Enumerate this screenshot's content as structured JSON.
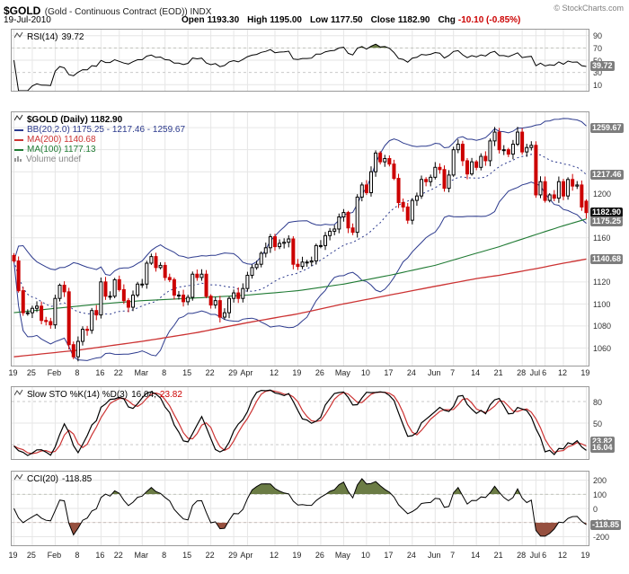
{
  "header": {
    "symbol": "$GOLD",
    "description": "(Gold - Continuous Contract (EOD)) INDX",
    "copyright": "© StockCharts.com",
    "date": "19-Jul-2010",
    "quote": {
      "open_label": "Open",
      "open_value": "1193.30",
      "high_label": "High",
      "high_value": "1195.00",
      "low_label": "Low",
      "low_value": "1177.50",
      "close_label": "Close",
      "close_value": "1182.90",
      "chg_label": "Chg",
      "chg_value": "-10.10 (-0.85%)"
    }
  },
  "panels": {
    "rsi": {
      "label": "RSI(14)",
      "value": "39.72",
      "ticks": [
        {
          "t": "90",
          "v": 90
        },
        {
          "t": "70",
          "v": 70
        },
        {
          "t": "50",
          "v": 50
        },
        {
          "t": "30",
          "v": 30
        },
        {
          "t": "10",
          "v": 10
        }
      ],
      "badges": [
        {
          "t": "39.72",
          "v": 39.72
        }
      ]
    },
    "price": {
      "legend_symbol": "$GOLD (Daily) 1182.90",
      "legend_bb": "BB(20,2.0) 1175.25 - 1217.46 - 1259.67",
      "legend_ma200": "MA(200) 1140.68",
      "legend_ma100": "MA(100) 1177.13",
      "legend_volume": "Volume undef",
      "ticks": [
        {
          "t": "1200",
          "v": 1200
        },
        {
          "t": "1160",
          "v": 1160
        },
        {
          "t": "1120",
          "v": 1120
        },
        {
          "t": "1100",
          "v": 1100
        },
        {
          "t": "1080",
          "v": 1080
        },
        {
          "t": "1060",
          "v": 1060
        }
      ],
      "badges": [
        {
          "t": "1259.67",
          "v": 1259.67
        },
        {
          "t": "1217.46",
          "v": 1217.46
        },
        {
          "t": "1182.90",
          "v": 1182.9,
          "dark": true
        },
        {
          "t": "1175.25",
          "v": 1175.25
        },
        {
          "t": "1140.68",
          "v": 1140.68
        }
      ]
    },
    "sto": {
      "label": "Slow STO %K(14) %D(3)",
      "k_value": "16.04,",
      "d_value": "23.82",
      "ticks": [
        {
          "t": "80",
          "v": 80
        },
        {
          "t": "50",
          "v": 50
        },
        {
          "t": "20",
          "v": 20
        }
      ],
      "badges": [
        {
          "t": "23.82",
          "v": 23.82
        },
        {
          "t": "16.04",
          "v": 16.04
        }
      ]
    },
    "cci": {
      "label": "CCI(20)",
      "value": "-118.85",
      "ticks": [
        {
          "t": "200",
          "v": 200
        },
        {
          "t": "100",
          "v": 100
        },
        {
          "t": "0",
          "v": 0
        },
        {
          "t": "-100",
          "v": -100
        },
        {
          "t": "-200",
          "v": -200
        }
      ],
      "badges": [
        {
          "t": "-118.85",
          "v": -118.85
        }
      ]
    }
  },
  "chart_data": {
    "type": "candlestick",
    "symbol": "$GOLD",
    "timeframe": "daily",
    "date_range": "19-Jan-2010 to 19-Jul-2010",
    "title": "$GOLD (Gold - Continuous Contract (EOD)) INDX",
    "last_quote": {
      "open": 1193.3,
      "high": 1195.0,
      "low": 1177.5,
      "close": 1182.9,
      "chg": -10.1,
      "chg_pct": -0.85
    },
    "price_axis": {
      "min": 1044,
      "max": 1274,
      "grid_step": 20,
      "grid_from": 1060,
      "grid_to": 1260
    },
    "close": [
      1139,
      1112,
      1092,
      1092,
      1096,
      1098,
      1085,
      1084,
      1081,
      1105,
      1117,
      1111,
      1063,
      1052,
      1066,
      1077,
      1076,
      1094,
      1090,
      1120,
      1107,
      1107,
      1122,
      1113,
      1103,
      1097,
      1108,
      1118,
      1118,
      1137,
      1143,
      1133,
      1135,
      1124,
      1122,
      1108,
      1108,
      1102,
      1106,
      1127,
      1124,
      1127,
      1107,
      1099,
      1103,
      1088,
      1092,
      1105,
      1110,
      1105,
      1114,
      1126,
      1133,
      1136,
      1146,
      1151,
      1161,
      1152,
      1155,
      1156,
      1159,
      1136,
      1134,
      1138,
      1138,
      1139,
      1153,
      1153,
      1162,
      1166,
      1168,
      1179,
      1183,
      1169,
      1165,
      1197,
      1208,
      1201,
      1220,
      1237,
      1229,
      1232,
      1227,
      1214,
      1192,
      1188,
      1176,
      1194,
      1198,
      1213,
      1211,
      1215,
      1224,
      1222,
      1205,
      1217,
      1240,
      1245,
      1230,
      1218,
      1229,
      1224,
      1234,
      1230,
      1248,
      1256,
      1240,
      1240,
      1236,
      1245,
      1256,
      1238,
      1242,
      1244,
      1199,
      1211,
      1194,
      1199,
      1196,
      1211,
      1198,
      1213,
      1207,
      1208,
      1188,
      1182.9
    ],
    "x_ticks": [
      {
        "t": "19",
        "i": 0
      },
      {
        "t": "25",
        "i": 4
      },
      {
        "t": "Feb",
        "i": 9
      },
      {
        "t": "8",
        "i": 14
      },
      {
        "t": "16",
        "i": 19
      },
      {
        "t": "22",
        "i": 23
      },
      {
        "t": "Mar",
        "i": 28
      },
      {
        "t": "8",
        "i": 33
      },
      {
        "t": "15",
        "i": 38
      },
      {
        "t": "22",
        "i": 43
      },
      {
        "t": "29",
        "i": 48
      },
      {
        "t": "Apr",
        "i": 51
      },
      {
        "t": "12",
        "i": 57
      },
      {
        "t": "19",
        "i": 62
      },
      {
        "t": "26",
        "i": 67
      },
      {
        "t": "May",
        "i": 72
      },
      {
        "t": "10",
        "i": 77
      },
      {
        "t": "17",
        "i": 82
      },
      {
        "t": "24",
        "i": 87
      },
      {
        "t": "Jun",
        "i": 92
      },
      {
        "t": "7",
        "i": 96
      },
      {
        "t": "14",
        "i": 101
      },
      {
        "t": "21",
        "i": 106
      },
      {
        "t": "28",
        "i": 111
      },
      {
        "t": "Jul",
        "i": 114
      },
      {
        "t": "6",
        "i": 116
      },
      {
        "t": "12",
        "i": 120
      },
      {
        "t": "19",
        "i": 125
      }
    ],
    "indicators": {
      "rsi14_last": 39.72,
      "bb20_last": {
        "lower": 1175.25,
        "mid": 1217.46,
        "upper": 1259.67
      },
      "ma200_last": 1140.68,
      "ma100_last": 1177.13,
      "slow_sto_last": {
        "k": 16.04,
        "d": 23.82
      },
      "cci20_last": -118.85,
      "volume": "undef"
    },
    "ma200_points": [
      [
        0,
        1052
      ],
      [
        14,
        1058
      ],
      [
        28,
        1066
      ],
      [
        40,
        1074
      ],
      [
        51,
        1083
      ],
      [
        62,
        1091
      ],
      [
        72,
        1100
      ],
      [
        82,
        1108
      ],
      [
        92,
        1116
      ],
      [
        101,
        1123
      ],
      [
        106,
        1126
      ],
      [
        114,
        1132
      ],
      [
        120,
        1137
      ],
      [
        125,
        1140.7
      ]
    ],
    "ma100_points": [
      [
        0,
        1092
      ],
      [
        9,
        1096
      ],
      [
        19,
        1100
      ],
      [
        28,
        1103
      ],
      [
        38,
        1105
      ],
      [
        51,
        1108
      ],
      [
        62,
        1112
      ],
      [
        72,
        1118
      ],
      [
        82,
        1126
      ],
      [
        92,
        1135
      ],
      [
        101,
        1146
      ],
      [
        106,
        1152
      ],
      [
        114,
        1163
      ],
      [
        120,
        1171
      ],
      [
        125,
        1177.1
      ]
    ],
    "colors": {
      "navy": "#2d3b8e",
      "ma200": "#cc3333",
      "ma100": "#1f7a33",
      "down": "#cc0000",
      "fill_olive": "#6b7c45",
      "fill_maroon": "#96503f",
      "grid": "#e6e6e6",
      "badge": "#7d7d7d"
    }
  }
}
